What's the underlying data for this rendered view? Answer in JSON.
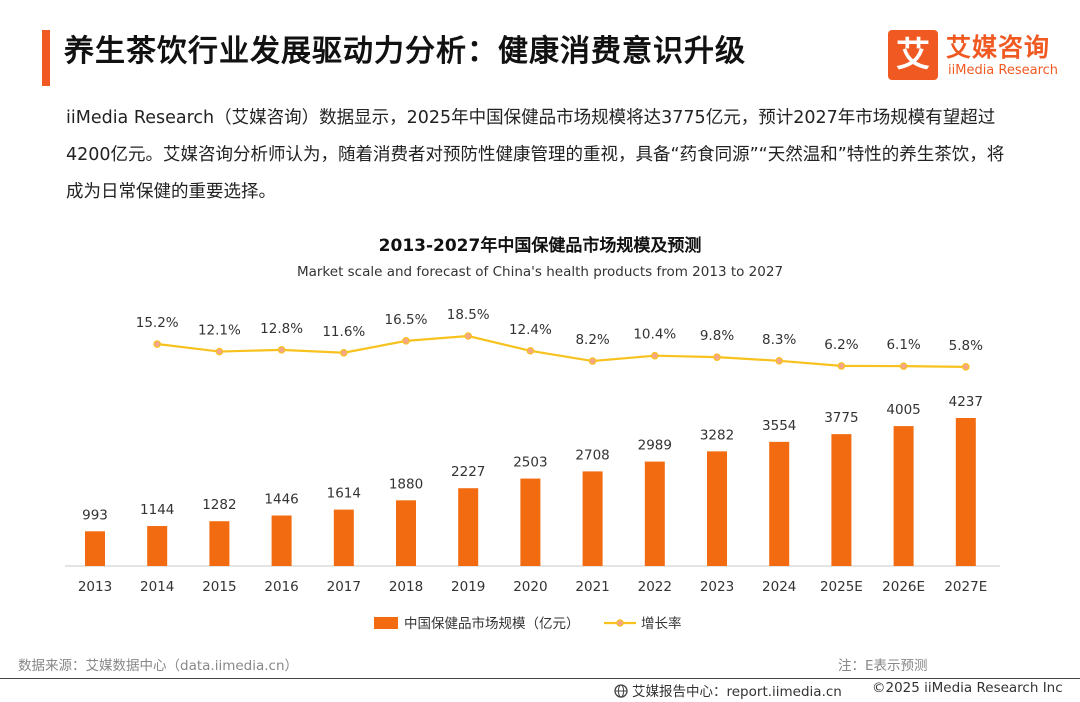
{
  "header": {
    "title": "养生茶饮行业发展驱动力分析：健康消费意识升级",
    "logo_mark": "艾",
    "logo_cn": "艾媒咨询",
    "logo_en": "iiMedia Research"
  },
  "intro": {
    "text": "iiMedia Research（艾媒咨询）数据显示，2025年中国保健品市场规模将达3775亿元，预计2027年市场规模有望超过4200亿元。艾媒咨询分析师认为，随着消费者对预防性健康管理的重视，具备“药食同源”“天然温和”特性的养生茶饮，将成为日常保健的重要选择。"
  },
  "chart_data": {
    "type": "bar",
    "title": "2013-2027年中国保健品市场规模及预测",
    "subtitle": "Market scale and forecast of China's health products from 2013 to 2027",
    "categories": [
      "2013",
      "2014",
      "2015",
      "2016",
      "2017",
      "2018",
      "2019",
      "2020",
      "2021",
      "2022",
      "2023",
      "2024",
      "2025E",
      "2026E",
      "2027E"
    ],
    "series": [
      {
        "name": "中国保健品市场规模（亿元）",
        "type": "bar",
        "color": "#f26b10",
        "values": [
          993,
          1144,
          1282,
          1446,
          1614,
          1880,
          2227,
          2503,
          2708,
          2989,
          3282,
          3554,
          3775,
          4005,
          4237
        ]
      },
      {
        "name": "增长率",
        "type": "line",
        "color": "#f7c21e",
        "values": [
          null,
          15.2,
          12.1,
          12.8,
          11.6,
          16.5,
          18.5,
          12.4,
          8.2,
          10.4,
          9.8,
          8.3,
          6.2,
          6.1,
          5.8
        ],
        "labels": [
          "",
          "15.2%",
          "12.1%",
          "12.8%",
          "11.6%",
          "16.5%",
          "18.5%",
          "12.4%",
          "8.2%",
          "10.4%",
          "9.8%",
          "8.3%",
          "6.2%",
          "6.1%",
          "5.8%"
        ]
      }
    ],
    "legend": "bottom-center",
    "grid": false
  },
  "footer": {
    "source": "数据来源：艾媒数据中心（data.iimedia.cn）",
    "note": "注：E表示预测",
    "report": "艾媒报告中心：report.iimedia.cn",
    "copyright": "©2025  iiMedia Research  Inc"
  }
}
